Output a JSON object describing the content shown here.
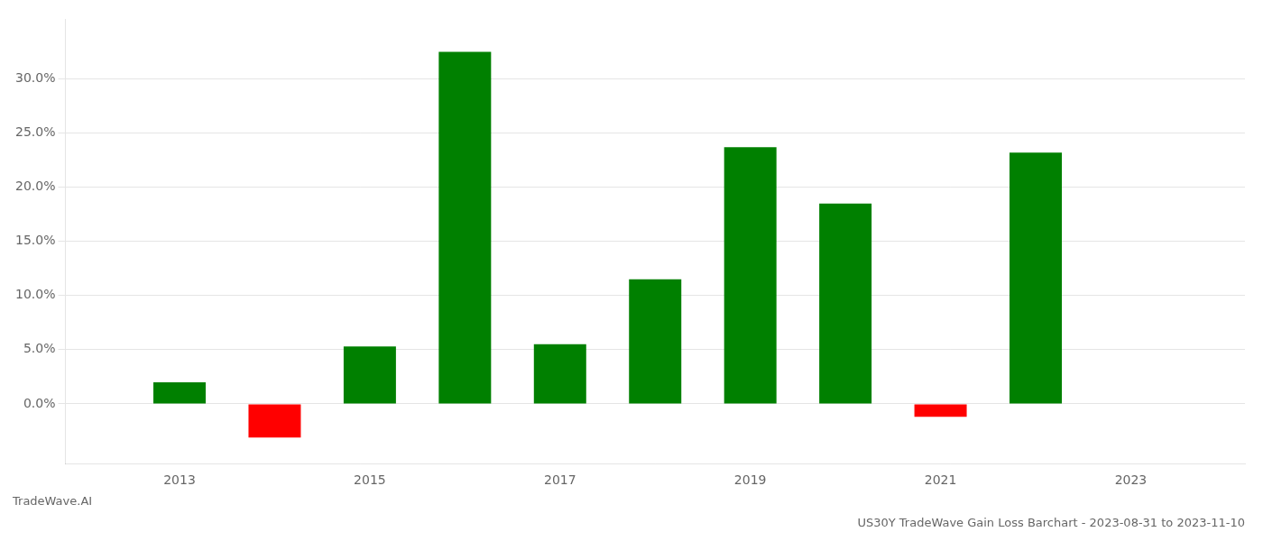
{
  "chart_data": {
    "type": "bar",
    "title": "US30Y TradeWave Gain Loss Barchart - 2023-08-31 to 2023-11-10",
    "annotations": [
      "TradeWave.AI"
    ],
    "x": [
      2013,
      2014,
      2015,
      2016,
      2017,
      2018,
      2019,
      2020,
      2021,
      2022
    ],
    "values": [
      0.02,
      -0.031,
      0.053,
      0.325,
      0.055,
      0.115,
      0.237,
      0.185,
      -0.012,
      0.232
    ],
    "colors": [
      "#008000",
      "#ff0000",
      "#008000",
      "#008000",
      "#008000",
      "#008000",
      "#008000",
      "#008000",
      "#ff0000",
      "#008000"
    ],
    "xlim": [
      2011.8,
      2024.2
    ],
    "xticks": [
      2013,
      2015,
      2017,
      2019,
      2021,
      2023
    ],
    "ylim": [
      -0.055,
      0.355
    ],
    "yticks": [
      {
        "value": 0.0,
        "label": "0.0%"
      },
      {
        "value": 0.05,
        "label": "5.0%"
      },
      {
        "value": 0.1,
        "label": "10.0%"
      },
      {
        "value": 0.15,
        "label": "15.0%"
      },
      {
        "value": 0.2,
        "label": "20.0%"
      },
      {
        "value": 0.25,
        "label": "25.0%"
      },
      {
        "value": 0.3,
        "label": "30.0%"
      }
    ],
    "grid": true
  }
}
